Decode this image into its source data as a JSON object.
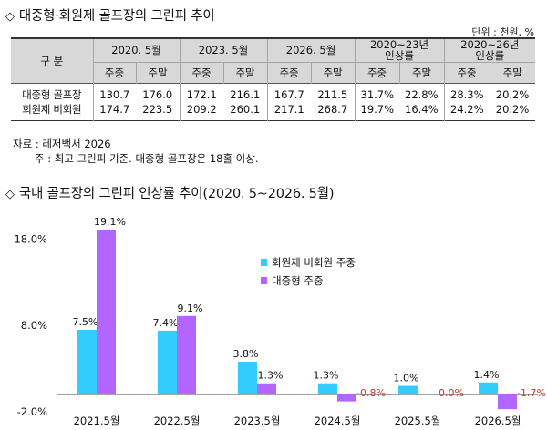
{
  "section1": {
    "diamond": "◇",
    "title": "대중형·회원제 골프장의 그린피 추이",
    "unit": "단위 : 천원, %"
  },
  "table": {
    "gubun": "구 분",
    "periods": [
      "2020. 5월",
      "2023. 5월",
      "2026. 5월"
    ],
    "rate_headers": [
      {
        "line1": "2020~23년",
        "line2": "인상률"
      },
      {
        "line1": "2020~26년",
        "line2": "인상률"
      }
    ],
    "sub_headers": [
      "주중",
      "주말",
      "주중",
      "주말",
      "주중",
      "주말",
      "주중",
      "주말",
      "주중",
      "주말"
    ],
    "rows": [
      {
        "name": "대중형 골프장",
        "cells": [
          "130.7",
          "176.0",
          "172.1",
          "216.1",
          "167.7",
          "211.5",
          "31.7%",
          "22.8%",
          "28.3%",
          "20.2%"
        ]
      },
      {
        "name": "회원제 비회원",
        "cells": [
          "174.7",
          "223.5",
          "209.2",
          "260.1",
          "217.1",
          "268.7",
          "19.7%",
          "16.4%",
          "24.2%",
          "20.2%"
        ]
      }
    ]
  },
  "notes": {
    "source": "자료 : 레저백서 2026",
    "footnote": "주 : 최고 그린피 기준. 대중형 골프장은 18홀 이상."
  },
  "section2": {
    "diamond": "◇",
    "title": "국내 골프장의 그린피 인상률 추이(2020. 5~2026. 5월)"
  },
  "chart_data": {
    "type": "bar",
    "categories": [
      "2021.5월",
      "2022.5월",
      "2023.5월",
      "2024.5월",
      "2025.5월",
      "2026.5월"
    ],
    "series": [
      {
        "name": "회원제 비회원 주중",
        "color": "#33ccff",
        "values": [
          7.5,
          7.4,
          3.8,
          1.3,
          1.0,
          1.4
        ],
        "labels": [
          "7.5%",
          "7.4%",
          "3.8%",
          "1.3%",
          "1.0%",
          "1.4%"
        ]
      },
      {
        "name": "대중형 주중",
        "color": "#b366ff",
        "values": [
          19.1,
          9.1,
          1.3,
          -0.8,
          0.0,
          -1.7
        ],
        "labels": [
          "19.1%",
          "9.1%",
          "1.3%",
          "-0.8%",
          "0.0%",
          "-1.7%"
        ]
      }
    ],
    "y_ticks": [
      {
        "value": 18.0,
        "label": "18.0%"
      },
      {
        "value": 8.0,
        "label": "8.0%"
      },
      {
        "value": -2.0,
        "label": "-2.0%"
      }
    ],
    "ylim": [
      -2.0,
      21.0
    ],
    "legend": "center-right",
    "negative_label_color": "#c0392b"
  }
}
